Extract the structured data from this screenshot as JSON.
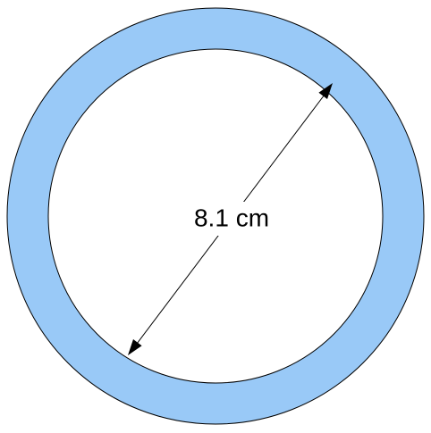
{
  "label": "8.1 cm"
}
